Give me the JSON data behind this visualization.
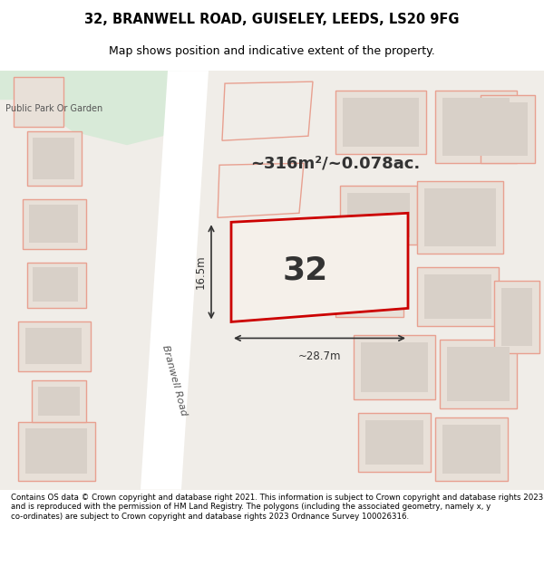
{
  "title_line1": "32, BRANWELL ROAD, GUISELEY, LEEDS, LS20 9FG",
  "title_line2": "Map shows position and indicative extent of the property.",
  "area_text": "~316m²/~0.078ac.",
  "property_number": "32",
  "dim_width": "~28.7m",
  "dim_height": "16.5m",
  "road_label": "Branwell Road",
  "park_label": "Public Park Or Garden",
  "footer_text": "Contains OS data © Crown copyright and database right 2021. This information is subject to Crown copyright and database rights 2023 and is reproduced with the permission of HM Land Registry. The polygons (including the associated geometry, namely x, y co-ordinates) are subject to Crown copyright and database rights 2023 Ordnance Survey 100026316.",
  "bg_color": "#f0ede8",
  "map_bg": "#f0ede8",
  "park_color": "#d8ead8",
  "road_color": "#ffffff",
  "property_fill": "#f5f0ea",
  "property_outline": "#cc0000",
  "building_fill": "#e8e0d8",
  "building_outline": "#e8a090",
  "dim_color": "#333333",
  "title_bg": "#ffffff",
  "footer_bg": "#ffffff"
}
